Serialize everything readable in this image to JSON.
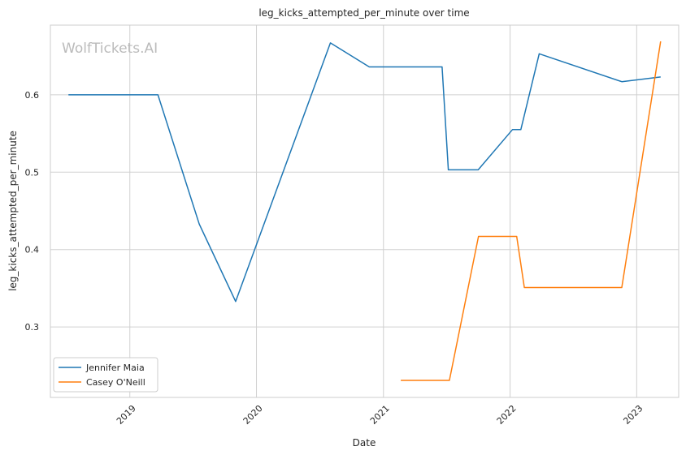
{
  "chart_data": {
    "type": "line",
    "title": "leg_kicks_attempted_per_minute over time",
    "xlabel": "Date",
    "ylabel": "leg_kicks_attempted_per_minute",
    "watermark": "WolfTickets.AI",
    "x_ticks": [
      "2019",
      "2020",
      "2021",
      "2022",
      "2023"
    ],
    "y_ticks": [
      "0.3",
      "0.4",
      "0.5",
      "0.6"
    ],
    "xlim": [
      "2018-05-17",
      "2023-05-02"
    ],
    "ylim": [
      0.209,
      0.69
    ],
    "grid": true,
    "legend_position": "bottom-left",
    "series": [
      {
        "name": "Jennifer Maia",
        "color": "#1f77b4",
        "points": [
          [
            "2018-07-08",
            0.6
          ],
          [
            "2019-03-23",
            0.6
          ],
          [
            "2019-07-20",
            0.433
          ],
          [
            "2019-11-02",
            0.333
          ],
          [
            "2020-08-01",
            0.667
          ],
          [
            "2020-11-21",
            0.636
          ],
          [
            "2021-06-19",
            0.636
          ],
          [
            "2021-07-07",
            0.503
          ],
          [
            "2021-10-01",
            0.503
          ],
          [
            "2022-01-08",
            0.555
          ],
          [
            "2022-02-01",
            0.555
          ],
          [
            "2022-03-26",
            0.653
          ],
          [
            "2022-11-19",
            0.617
          ],
          [
            "2023-03-11",
            0.623
          ]
        ]
      },
      {
        "name": "Casey O'Neill",
        "color": "#ff7f0e",
        "points": [
          [
            "2021-02-20",
            0.231
          ],
          [
            "2021-07-10",
            0.231
          ],
          [
            "2021-10-02",
            0.417
          ],
          [
            "2022-01-20",
            0.417
          ],
          [
            "2022-02-11",
            0.351
          ],
          [
            "2022-11-19",
            0.351
          ],
          [
            "2023-03-11",
            0.669
          ]
        ]
      }
    ]
  }
}
